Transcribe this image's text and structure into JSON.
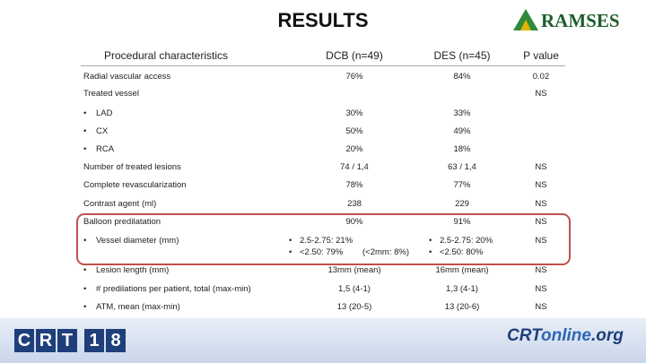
{
  "header": {
    "title": "RESULTS",
    "logo": "RAMSES"
  },
  "table": {
    "columns": [
      "Procedural characteristics",
      "DCB (n=49)",
      "DES (n=45)",
      "P value"
    ],
    "rows": [
      {
        "label": "Radial vascular access",
        "dcb": "76%",
        "des": "84%",
        "p": "0.02"
      },
      {
        "label": "Treated vessel",
        "p": "NS"
      },
      {
        "label": "LAD",
        "bullet": true,
        "dcb": "30%",
        "des": "33%"
      },
      {
        "label": "CX",
        "bullet": true,
        "dcb": "50%",
        "des": "49%"
      },
      {
        "label": "RCA",
        "bullet": true,
        "dcb": "20%",
        "des": "18%"
      },
      {
        "label": "Number of treated lesions",
        "dcb": "74 / 1,4",
        "des": "63 / 1,4",
        "p": "NS"
      },
      {
        "label": "Complete revascularization",
        "dcb": "78%",
        "des": "77%",
        "p": "NS"
      },
      {
        "label": "Contrast agent (ml)",
        "dcb": "238",
        "des": "229",
        "p": "NS"
      },
      {
        "label": "Balloon predilatation",
        "dcb": "90%",
        "des": "91%",
        "p": "NS"
      },
      {
        "label": "Vessel diameter (mm)",
        "bullet": true,
        "dcb": [
          "2.5-2.75: 21%",
          "<2.50: 79%"
        ],
        "dcb_note": "(<2mm: 8%)",
        "des": [
          "2.5-2.75: 20%",
          "<2.50: 80%"
        ],
        "p": "NS"
      },
      {
        "label": "Lesion length (mm)",
        "bullet": true,
        "dcb": "13mm (mean)",
        "des": "16mm (mean)",
        "p": "NS"
      },
      {
        "label": "# predilations per patient, total (max-min)",
        "bullet": true,
        "dcb": "1,5 (4-1)",
        "des": "1,3 (4-1)",
        "p": "NS"
      },
      {
        "label": "ATM, mean (max-min)",
        "bullet": true,
        "dcb": "13 (20-5)",
        "des": "13 (20-6)",
        "p": "NS"
      }
    ]
  },
  "footer": {
    "left_logo": [
      "C",
      "R",
      "T",
      "1",
      "8"
    ],
    "right_logo": [
      "CRT",
      "online",
      ".org"
    ]
  }
}
